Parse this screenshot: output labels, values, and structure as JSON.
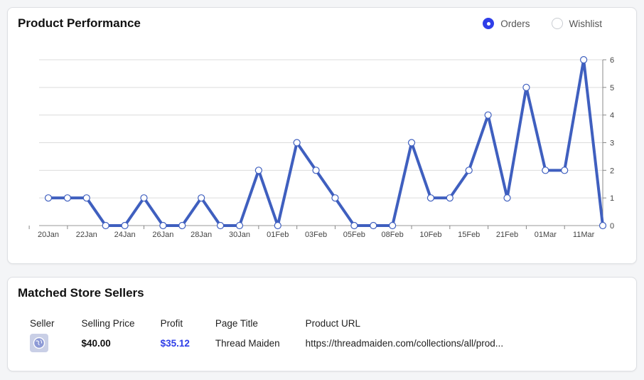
{
  "performance": {
    "title": "Product Performance",
    "legend": [
      {
        "label": "Orders",
        "checked": true
      },
      {
        "label": "Wishlist",
        "checked": false
      }
    ]
  },
  "chart_data": {
    "type": "line",
    "title": "Product Performance",
    "x_tick_labels": [
      "20Jan",
      "22Jan",
      "24Jan",
      "26Jan",
      "28Jan",
      "30Jan",
      "01Feb",
      "03Feb",
      "05Feb",
      "08Feb",
      "10Feb",
      "15Feb",
      "21Feb",
      "01Mar",
      "11Mar"
    ],
    "series": [
      {
        "name": "Orders",
        "color": "#3f5fbf",
        "values": [
          1,
          1,
          1,
          0,
          0,
          1,
          0,
          0,
          1,
          0,
          0,
          2,
          0,
          3,
          2,
          1,
          0,
          0,
          0,
          3,
          1,
          1,
          2,
          4,
          1,
          5,
          2,
          2,
          6,
          0
        ]
      }
    ],
    "ylim": [
      0,
      6
    ],
    "y_ticks": [
      0,
      1,
      2,
      3,
      4,
      5,
      6
    ],
    "y_axis_side": "right",
    "grid": true
  },
  "sellers": {
    "title": "Matched Store Sellers",
    "columns": [
      "Seller",
      "Selling Price",
      "Profit",
      "Page Title",
      "Product URL"
    ],
    "rows": [
      {
        "selling_price": "$40.00",
        "profit": "$35.12",
        "page_title": "Thread Maiden",
        "product_url": "https://threadmaiden.com/collections/all/prod..."
      }
    ]
  }
}
